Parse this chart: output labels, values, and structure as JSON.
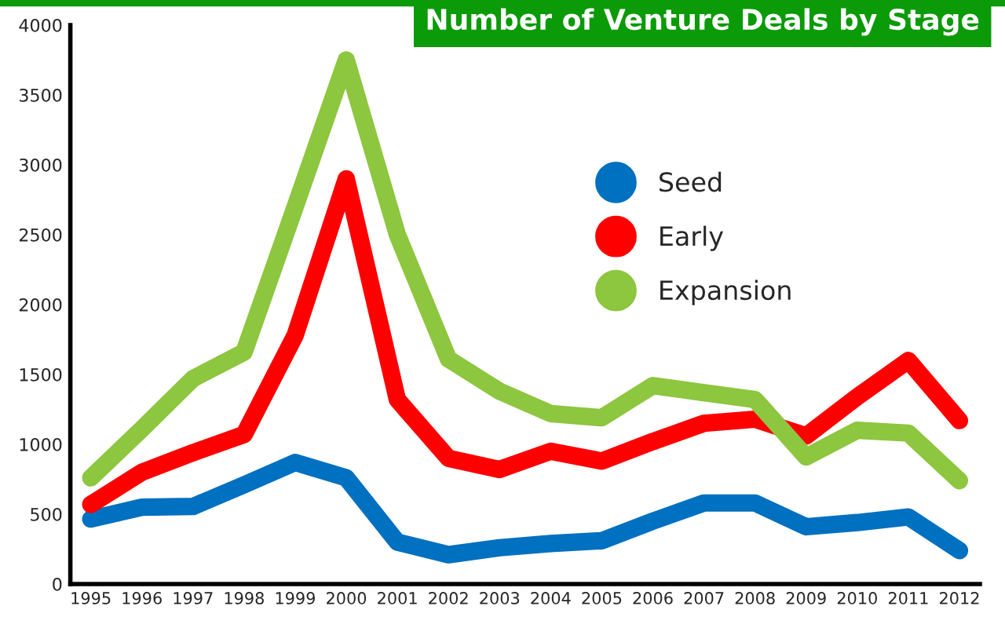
{
  "chart_data": {
    "type": "line",
    "title": "Number of Venture Deals by Stage",
    "categories": [
      "1995",
      "1996",
      "1997",
      "1998",
      "1999",
      "2000",
      "2001",
      "2002",
      "2003",
      "2004",
      "2005",
      "2006",
      "2007",
      "2008",
      "2009",
      "2010",
      "2011",
      "2012"
    ],
    "series": [
      {
        "name": "Seed",
        "color": "#0070c0",
        "values": [
          465,
          550,
          555,
          710,
          870,
          760,
          300,
          210,
          260,
          290,
          310,
          450,
          580,
          580,
          410,
          440,
          480,
          240
        ]
      },
      {
        "name": "Early",
        "color": "#ff0000",
        "values": [
          570,
          800,
          940,
          1070,
          1780,
          2900,
          1320,
          900,
          820,
          950,
          880,
          1020,
          1150,
          1180,
          1060,
          1340,
          1600,
          1170
        ]
      },
      {
        "name": "Expansion",
        "color": "#8dc63f",
        "values": [
          760,
          1110,
          1470,
          1660,
          2700,
          3750,
          2500,
          1610,
          1380,
          1220,
          1190,
          1420,
          1370,
          1320,
          910,
          1100,
          1080,
          740
        ]
      }
    ],
    "ylim": [
      0,
      4000
    ],
    "yticks": [
      0,
      500,
      1000,
      1500,
      2000,
      2500,
      3000,
      3500,
      4000
    ],
    "grid": false,
    "legend": "top right",
    "marker": "none",
    "line_style": "solid"
  }
}
